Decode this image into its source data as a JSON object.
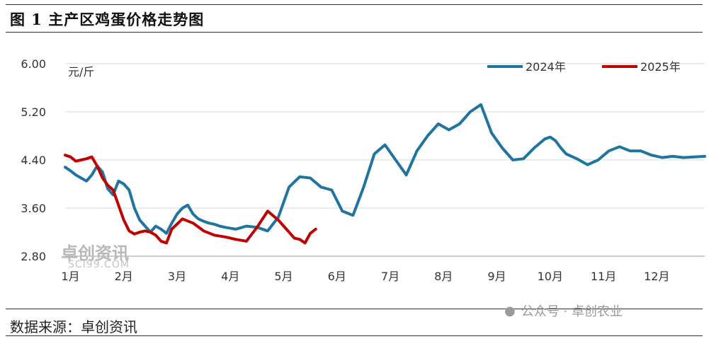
{
  "header": {
    "title": "图 1  主产区鸡蛋价格走势图"
  },
  "footer": {
    "source": "数据来源：卓创资讯"
  },
  "watermark": {
    "right": "公众号 · 卓创农业",
    "logo": "卓创资讯",
    "logo_sub": "SCI99.COM"
  },
  "colors": {
    "series_2024": "#2074a0",
    "series_2025": "#c00000",
    "grid": "#d9d9d9"
  },
  "chart_data": {
    "type": "line",
    "title": "图 1  主产区鸡蛋价格走势图",
    "ylabel": "元/斤",
    "ylim": [
      2.8,
      6.0
    ],
    "yticks": [
      "2.80",
      "3.60",
      "4.40",
      "5.20",
      "6.00"
    ],
    "xlim": [
      0,
      12
    ],
    "xticks": [
      "1月",
      "2月",
      "3月",
      "4月",
      "5月",
      "6月",
      "7月",
      "8月",
      "9月",
      "10月",
      "11月",
      "12月"
    ],
    "grid": true,
    "legend_position": "top-right",
    "series": [
      {
        "name": "2024年",
        "x": [
          0.0,
          0.1,
          0.2,
          0.3,
          0.4,
          0.5,
          0.6,
          0.7,
          0.8,
          0.9,
          1.0,
          1.1,
          1.2,
          1.3,
          1.4,
          1.5,
          1.6,
          1.7,
          1.8,
          1.9,
          2.0,
          2.1,
          2.2,
          2.3,
          2.4,
          2.5,
          2.6,
          2.7,
          2.8,
          2.9,
          3.0,
          3.2,
          3.4,
          3.6,
          3.8,
          4.0,
          4.2,
          4.4,
          4.6,
          4.8,
          5.0,
          5.2,
          5.4,
          5.6,
          5.8,
          6.0,
          6.2,
          6.4,
          6.6,
          6.8,
          7.0,
          7.2,
          7.4,
          7.6,
          7.8,
          8.0,
          8.2,
          8.4,
          8.6,
          8.8,
          9.0,
          9.1,
          9.2,
          9.3,
          9.4,
          9.6,
          9.8,
          10.0,
          10.2,
          10.4,
          10.6,
          10.8,
          11.0,
          11.2,
          11.4,
          11.6,
          11.8,
          12.0
        ],
        "values": [
          4.28,
          4.22,
          4.15,
          4.1,
          4.05,
          4.15,
          4.3,
          4.2,
          3.92,
          3.82,
          4.05,
          4.0,
          3.9,
          3.6,
          3.4,
          3.3,
          3.2,
          3.3,
          3.25,
          3.18,
          3.35,
          3.5,
          3.6,
          3.65,
          3.5,
          3.42,
          3.38,
          3.35,
          3.33,
          3.3,
          3.28,
          3.25,
          3.3,
          3.28,
          3.22,
          3.45,
          3.95,
          4.12,
          4.1,
          3.95,
          3.9,
          3.55,
          3.48,
          3.95,
          4.5,
          4.65,
          4.4,
          4.15,
          4.55,
          4.8,
          5.0,
          4.9,
          5.0,
          5.2,
          5.32,
          4.85,
          4.6,
          4.4,
          4.42,
          4.6,
          4.75,
          4.78,
          4.72,
          4.6,
          4.5,
          4.42,
          4.32,
          4.4,
          4.55,
          4.62,
          4.55,
          4.55,
          4.48,
          4.44,
          4.46,
          4.44,
          4.45,
          4.46
        ]
      },
      {
        "name": "2025年",
        "x": [
          0.0,
          0.1,
          0.2,
          0.3,
          0.4,
          0.5,
          0.6,
          0.7,
          0.8,
          0.9,
          1.0,
          1.1,
          1.2,
          1.3,
          1.4,
          1.5,
          1.6,
          1.7,
          1.8,
          1.9,
          2.0,
          2.2,
          2.4,
          2.6,
          2.8,
          3.0,
          3.2,
          3.4,
          3.6,
          3.8,
          4.0,
          4.1,
          4.2,
          4.3,
          4.4,
          4.5,
          4.6,
          4.7
        ],
        "values": [
          4.48,
          4.45,
          4.38,
          4.4,
          4.42,
          4.45,
          4.3,
          4.1,
          3.98,
          3.9,
          3.65,
          3.4,
          3.22,
          3.17,
          3.2,
          3.22,
          3.2,
          3.15,
          3.05,
          3.02,
          3.25,
          3.42,
          3.35,
          3.22,
          3.15,
          3.12,
          3.08,
          3.05,
          3.28,
          3.55,
          3.4,
          3.3,
          3.2,
          3.1,
          3.08,
          3.02,
          3.18,
          3.25
        ]
      }
    ]
  }
}
